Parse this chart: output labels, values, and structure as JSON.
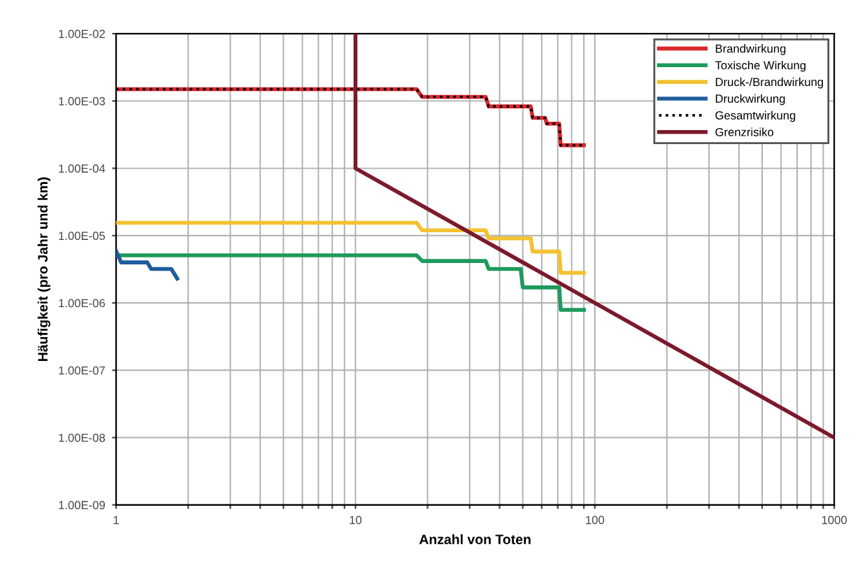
{
  "chart_data": {
    "type": "line",
    "xlabel": "Anzahl von Toten",
    "ylabel": "Häufigkeit (pro Jahr und km)",
    "log": "xy",
    "xlim": [
      1,
      1000
    ],
    "ylim": [
      1e-09,
      0.01
    ],
    "xticks": [
      1,
      {
        "value": 2,
        "label": null
      },
      {
        "value": 3,
        "label": null
      },
      {
        "value": 4,
        "label": null
      },
      {
        "value": 5,
        "label": null
      },
      {
        "value": 6,
        "label": null
      },
      {
        "value": 7,
        "label": null
      },
      {
        "value": 8,
        "label": null
      },
      {
        "value": 9,
        "label": null
      },
      10,
      {
        "value": 20,
        "label": null
      },
      {
        "value": 30,
        "label": null
      },
      {
        "value": 40,
        "label": null
      },
      {
        "value": 50,
        "label": null
      },
      {
        "value": 60,
        "label": null
      },
      {
        "value": 70,
        "label": null
      },
      {
        "value": 80,
        "label": null
      },
      {
        "value": 90,
        "label": null
      },
      100,
      {
        "value": 200,
        "label": null
      },
      {
        "value": 300,
        "label": null
      },
      {
        "value": 400,
        "label": null
      },
      {
        "value": 500,
        "label": null
      },
      {
        "value": 600,
        "label": null
      },
      {
        "value": 700,
        "label": null
      },
      {
        "value": 800,
        "label": null
      },
      {
        "value": 900,
        "label": null
      },
      1000
    ],
    "yticks": [
      {
        "value": 1e-09,
        "label": "1.00E-09"
      },
      {
        "value": 1e-08,
        "label": "1.00E-08"
      },
      {
        "value": 1e-07,
        "label": "1.00E-07"
      },
      {
        "value": 1e-06,
        "label": "1.00E-06"
      },
      {
        "value": 1e-05,
        "label": "1.00E-05"
      },
      {
        "value": 0.0001,
        "label": "1.00E-04"
      },
      {
        "value": 0.001,
        "label": "1.00E-03"
      },
      {
        "value": 0.01,
        "label": "1.00E-02"
      }
    ],
    "grid": true,
    "legend": "top right",
    "marker": "none",
    "series": [
      {
        "name": "Brandwirkung",
        "color": "#d9262c",
        "line_style": "solid",
        "x": [
          1,
          18,
          19,
          35,
          36,
          54,
          55,
          62,
          63,
          71,
          72,
          90
        ],
        "values": [
          0.0015,
          0.0015,
          0.00115,
          0.00115,
          0.00083,
          0.00083,
          0.00056,
          0.00056,
          0.00046,
          0.00046,
          0.00022,
          0.00022
        ]
      },
      {
        "name": "Toxische Wirkung",
        "color": "#1e9a5c",
        "line_style": "solid",
        "x": [
          1,
          18,
          19,
          35,
          36,
          49,
          50,
          71,
          72,
          90
        ],
        "values": [
          5.1e-06,
          5.1e-06,
          4.2e-06,
          4.2e-06,
          3.2e-06,
          3.2e-06,
          1.7e-06,
          1.7e-06,
          7.9e-07,
          7.9e-07
        ]
      },
      {
        "name": "Druck-/Brandwirkung",
        "color": "#f2c230",
        "line_style": "solid",
        "x": [
          1,
          18,
          19,
          35,
          36,
          54,
          55,
          71,
          72,
          90
        ],
        "values": [
          1.55e-05,
          1.55e-05,
          1.2e-05,
          1.2e-05,
          9.1e-06,
          9.1e-06,
          5.8e-06,
          5.8e-06,
          2.8e-06,
          2.8e-06
        ]
      },
      {
        "name": "Druckwirkung",
        "color": "#1f5c9e",
        "line_style": "solid",
        "x": [
          1,
          1.05,
          1.35,
          1.4,
          1.7,
          1.8
        ],
        "values": [
          5.9e-06,
          4e-06,
          4e-06,
          3.2e-06,
          3.2e-06,
          2.3e-06
        ]
      },
      {
        "name": "Gesamtwirkung",
        "color": "#000000",
        "line_style": "dotted",
        "x": [
          1,
          18,
          19,
          35,
          36,
          54,
          55,
          62,
          63,
          71,
          72,
          90
        ],
        "values": [
          0.0015,
          0.0015,
          0.00115,
          0.00115,
          0.00083,
          0.00083,
          0.00056,
          0.00056,
          0.00046,
          0.00046,
          0.00022,
          0.00022
        ]
      },
      {
        "name": "Grenzrisiko",
        "color": "#7a1a2c",
        "line_style": "solid",
        "x": [
          10,
          10,
          1000
        ],
        "values": [
          0.01,
          0.0001,
          1e-08
        ]
      }
    ]
  }
}
